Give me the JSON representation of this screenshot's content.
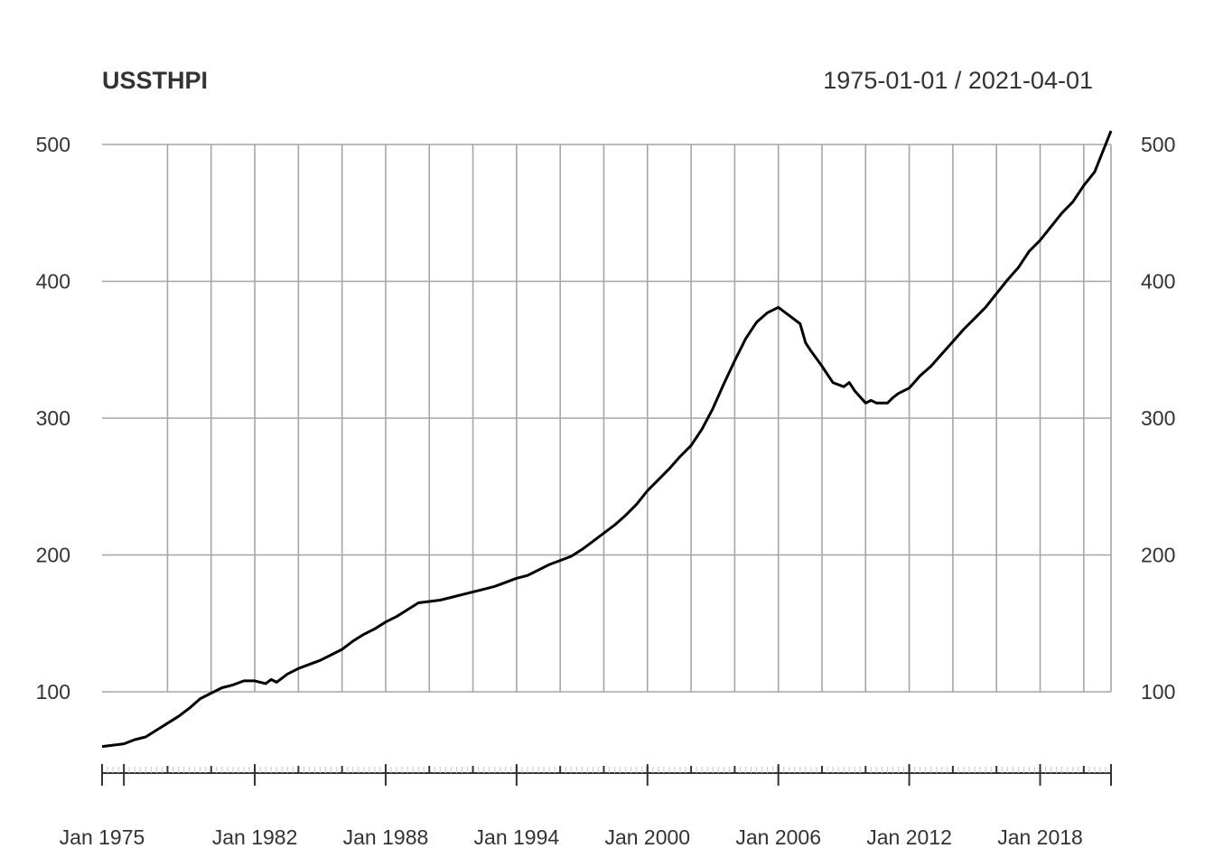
{
  "chart_data": {
    "type": "line",
    "title": "USSTHPI",
    "date_range": "1975-01-01 / 2021-04-01",
    "ylim": [
      40,
      510
    ],
    "yticks": [
      100,
      200,
      300,
      400,
      500
    ],
    "ytick_labels": [
      "100",
      "200",
      "300",
      "400",
      "500"
    ],
    "xlim": [
      1975.0,
      2021.25
    ],
    "xticks": [
      1975,
      1982,
      1988,
      1994,
      2000,
      2006,
      2012,
      2018
    ],
    "xtick_labels": [
      "Jan 1975",
      "Jan 1982",
      "Jan 1988",
      "Jan 1994",
      "Jan 2000",
      "Jan 2006",
      "Jan 2012",
      "Jan 2018"
    ],
    "x_gridlines": [
      1978,
      1980,
      1982,
      1984,
      1986,
      1988,
      1990,
      1992,
      1994,
      1996,
      1998,
      2000,
      2002,
      2004,
      2006,
      2008,
      2010,
      2012,
      2014,
      2016,
      2018,
      2020,
      2021.25
    ],
    "grid": true,
    "series": [
      {
        "color": "#000000",
        "x": [
          1975.0,
          1975.5,
          1976.0,
          1976.5,
          1977.0,
          1977.5,
          1978.0,
          1978.5,
          1979.0,
          1979.5,
          1980.0,
          1980.5,
          1981.0,
          1981.5,
          1982.0,
          1982.5,
          1982.75,
          1983.0,
          1983.5,
          1984.0,
          1984.5,
          1985.0,
          1985.5,
          1986.0,
          1986.5,
          1987.0,
          1987.5,
          1988.0,
          1988.5,
          1989.0,
          1989.5,
          1990.0,
          1990.5,
          1991.0,
          1991.5,
          1992.0,
          1992.5,
          1993.0,
          1993.5,
          1994.0,
          1994.5,
          1995.0,
          1995.5,
          1996.0,
          1996.5,
          1997.0,
          1997.5,
          1998.0,
          1998.5,
          1999.0,
          1999.5,
          2000.0,
          2000.5,
          2001.0,
          2001.5,
          2002.0,
          2002.5,
          2003.0,
          2003.5,
          2004.0,
          2004.5,
          2005.0,
          2005.5,
          2006.0,
          2006.5,
          2007.0,
          2007.25,
          2007.5,
          2008.0,
          2008.25,
          2008.5,
          2009.0,
          2009.25,
          2009.5,
          2010.0,
          2010.25,
          2010.5,
          2011.0,
          2011.25,
          2011.5,
          2012.0,
          2012.5,
          2013.0,
          2013.5,
          2014.0,
          2014.5,
          2015.0,
          2015.5,
          2016.0,
          2016.5,
          2017.0,
          2017.5,
          2018.0,
          2018.5,
          2019.0,
          2019.5,
          2020.0,
          2020.5,
          2021.0,
          2021.25
        ],
        "y": [
          60,
          61,
          62,
          65,
          67,
          72,
          77,
          82,
          88,
          95,
          99,
          103,
          105,
          108,
          108,
          106,
          109,
          107,
          113,
          117,
          120,
          123,
          127,
          131,
          137,
          142,
          146,
          151,
          155,
          160,
          165,
          166,
          167,
          169,
          171,
          173,
          175,
          177,
          180,
          183,
          185,
          189,
          193,
          196,
          199,
          204,
          210,
          216,
          222,
          229,
          237,
          247,
          255,
          263,
          272,
          280,
          292,
          307,
          325,
          342,
          358,
          370,
          377,
          381,
          375,
          369,
          355,
          349,
          338,
          332,
          326,
          323,
          326,
          320,
          311,
          313,
          311,
          311,
          315,
          318,
          322,
          331,
          338,
          347,
          356,
          365,
          373,
          381,
          391,
          401,
          410,
          422,
          430,
          440,
          450,
          458,
          470,
          480,
          500,
          510
        ]
      }
    ]
  }
}
